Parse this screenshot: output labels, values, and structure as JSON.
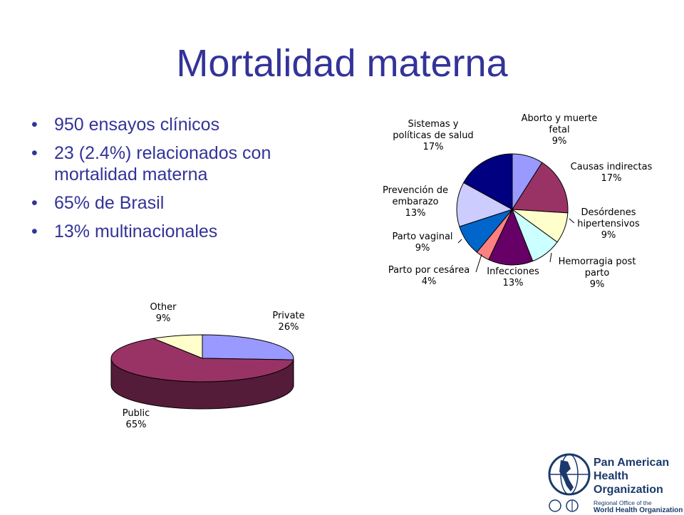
{
  "slide": {
    "title": "Mortalidad materna",
    "bullets": [
      "950 ensayos clínicos",
      "23 (2.4%) relacionados con mortalidad materna",
      "65% de Brasil",
      "13% multinacionales"
    ]
  },
  "chart_data": [
    {
      "type": "pie",
      "categories": [
        "Aborto y muerte fetal",
        "Causas indirectas",
        "Desórdenes hipertensivos",
        "Hemorragia post parto",
        "Infecciones",
        "Parto por cesárea",
        "Parto vaginal",
        "Prevención de embarazo",
        "Sistemas y políticas de salud"
      ],
      "values": [
        9,
        17,
        9,
        9,
        13,
        4,
        9,
        13,
        17
      ],
      "value_labels": [
        "9%",
        "17%",
        "9%",
        "9%",
        "13%",
        "4%",
        "9%",
        "13%",
        "17%"
      ],
      "colors": [
        "#9999ff",
        "#993366",
        "#ffffcc",
        "#ccffff",
        "#660066",
        "#ff8080",
        "#0066cc",
        "#ccccff",
        "#000080"
      ],
      "legend": "none"
    },
    {
      "type": "pie",
      "style": "3d",
      "categories": [
        "Private",
        "Public",
        "Other"
      ],
      "values": [
        26,
        65,
        9
      ],
      "value_labels": [
        "26%",
        "65%",
        "9%"
      ],
      "colors": [
        "#9999ff",
        "#993366",
        "#ffffcc"
      ],
      "legend": "none"
    }
  ],
  "logo": {
    "line1": "Pan American",
    "line2": "Health",
    "line3": "Organization",
    "sub1": "Regional Office of the",
    "sub2": "World Health Organization"
  }
}
